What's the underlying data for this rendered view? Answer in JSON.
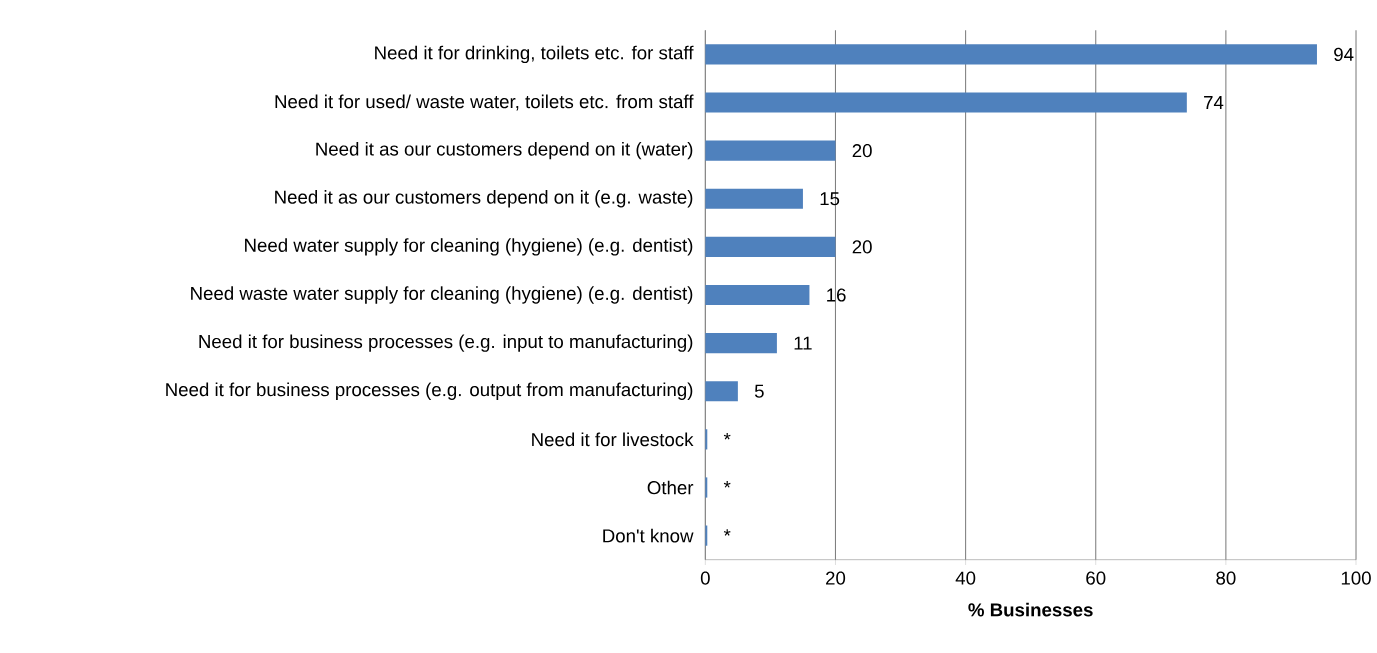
{
  "chart_data": {
    "type": "bar",
    "orientation": "horizontal",
    "xlabel": "% Businesses",
    "categories": [
      "Need it for drinking, toilets etc. for staff",
      "Need it for used/ waste water, toilets etc. from staff",
      "Need it as our customers depend on it (water)",
      "Need it as our customers depend on it (e.g. waste)",
      "Need water supply for cleaning (hygiene) (e.g. dentist)",
      "Need waste water supply for cleaning (hygiene) (e.g. dentist)",
      "Need it for business processes (e.g. input to manufacturing)",
      "Need it for business processes (e.g. output from manufacturing)",
      "Need it for livestock",
      "Other",
      "Don't know"
    ],
    "values": [
      94,
      74,
      20,
      15,
      20,
      16,
      11,
      5,
      0.3,
      0.3,
      0.3
    ],
    "value_labels": [
      "94",
      "74",
      "20",
      "15",
      "20",
      "16",
      "11",
      "5",
      "*",
      "*",
      "*"
    ],
    "color": "#4f81bd",
    "xlim": [
      0,
      100
    ],
    "xticks": [
      0,
      20,
      40,
      60,
      80,
      100
    ],
    "grid": "x"
  }
}
